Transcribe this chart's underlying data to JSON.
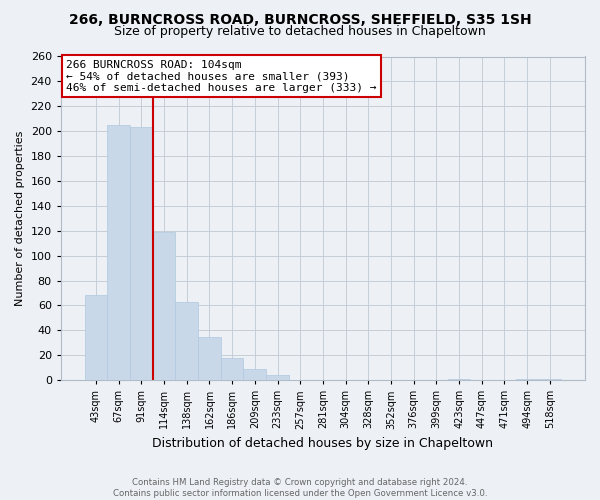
{
  "title": "266, BURNCROSS ROAD, BURNCROSS, SHEFFIELD, S35 1SH",
  "subtitle": "Size of property relative to detached houses in Chapeltown",
  "xlabel": "Distribution of detached houses by size in Chapeltown",
  "ylabel": "Number of detached properties",
  "bar_labels": [
    "43sqm",
    "67sqm",
    "91sqm",
    "114sqm",
    "138sqm",
    "162sqm",
    "186sqm",
    "209sqm",
    "233sqm",
    "257sqm",
    "281sqm",
    "304sqm",
    "328sqm",
    "352sqm",
    "376sqm",
    "399sqm",
    "423sqm",
    "447sqm",
    "471sqm",
    "494sqm",
    "518sqm"
  ],
  "bar_values": [
    68,
    205,
    203,
    119,
    63,
    35,
    18,
    9,
    4,
    0,
    0,
    0,
    0,
    0,
    0,
    0,
    1,
    0,
    0,
    1,
    1
  ],
  "bar_color": "#c8d8e8",
  "bar_edge_color": "#b0c8e0",
  "vline_color": "#cc0000",
  "ylim": [
    0,
    260
  ],
  "yticks": [
    0,
    20,
    40,
    60,
    80,
    100,
    120,
    140,
    160,
    180,
    200,
    220,
    240,
    260
  ],
  "annotation_line1": "266 BURNCROSS ROAD: 104sqm",
  "annotation_line2": "← 54% of detached houses are smaller (393)",
  "annotation_line3": "46% of semi-detached houses are larger (333) →",
  "footer1": "Contains HM Land Registry data © Crown copyright and database right 2024.",
  "footer2": "Contains public sector information licensed under the Open Government Licence v3.0.",
  "background_color": "#edf0f5",
  "plot_bg_color": "#edf0f5",
  "grid_color": "#c5cdd8",
  "title_fontsize": 10,
  "subtitle_fontsize": 9
}
